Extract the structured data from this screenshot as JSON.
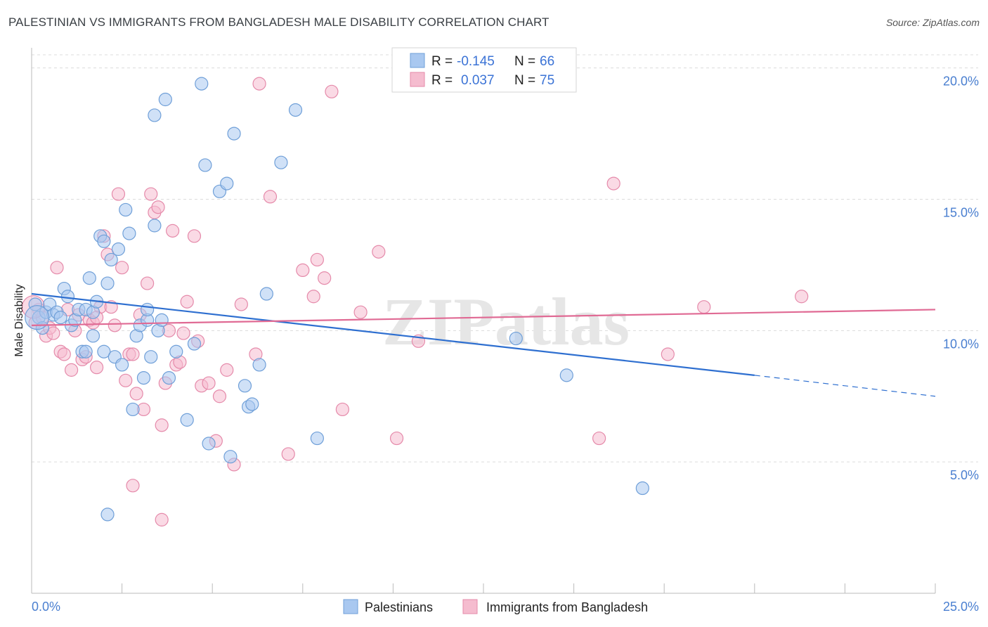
{
  "title": "PALESTINIAN VS IMMIGRANTS FROM BANGLADESH MALE DISABILITY CORRELATION CHART",
  "source": "Source: ZipAtlas.com",
  "watermark": "ZIPatlas",
  "legend": {
    "rows": [
      {
        "r_label": "R =",
        "r_value": "-0.145",
        "n_label": "N =",
        "n_value": "66"
      },
      {
        "r_label": "R =",
        "r_value": "0.037",
        "n_label": "N =",
        "n_value": "75"
      }
    ]
  },
  "bottom_legend": [
    "Palestinians",
    "Immigrants from Bangladesh"
  ],
  "colors": {
    "blue_fill": "#a9c8f0",
    "blue_stroke": "#6f9fd8",
    "blue_line": "#2e6fd0",
    "pink_fill": "#f5bccf",
    "pink_stroke": "#e58aaa",
    "pink_line": "#e06a94",
    "tick_label": "#4a7fd0",
    "grid": "#dcdcdc"
  },
  "chart_data": {
    "type": "scatter",
    "xlabel": "",
    "ylabel": "Male Disability",
    "xlim": [
      0,
      25
    ],
    "ylim": [
      0,
      20.5
    ],
    "x_tick_labels": [
      "0.0%",
      "25.0%"
    ],
    "y_ticks": [
      5,
      10,
      15,
      20
    ],
    "y_tick_labels": [
      "5.0%",
      "10.0%",
      "15.0%",
      "20.0%"
    ],
    "grid": true,
    "series": [
      {
        "name": "Palestinians",
        "color": "#a9c8f0",
        "trend": {
          "x": [
            0,
            20
          ],
          "y": [
            11.4,
            8.3
          ],
          "dashed_to": [
            25,
            7.5
          ]
        },
        "points": [
          [
            0.1,
            11.0
          ],
          [
            0.2,
            10.5
          ],
          [
            0.3,
            10.1
          ],
          [
            0.4,
            10.7
          ],
          [
            0.5,
            11.0
          ],
          [
            0.6,
            10.6
          ],
          [
            0.7,
            10.7
          ],
          [
            0.8,
            10.5
          ],
          [
            0.9,
            11.6
          ],
          [
            1.0,
            11.3
          ],
          [
            1.1,
            10.2
          ],
          [
            1.2,
            10.4
          ],
          [
            1.3,
            10.8
          ],
          [
            1.4,
            9.2
          ],
          [
            1.5,
            9.2
          ],
          [
            1.5,
            10.8
          ],
          [
            1.6,
            12.0
          ],
          [
            1.7,
            9.8
          ],
          [
            1.7,
            10.7
          ],
          [
            1.8,
            11.1
          ],
          [
            1.9,
            13.6
          ],
          [
            2.0,
            9.2
          ],
          [
            2.0,
            13.4
          ],
          [
            2.1,
            11.8
          ],
          [
            2.2,
            12.7
          ],
          [
            2.3,
            9.0
          ],
          [
            2.4,
            13.1
          ],
          [
            2.5,
            8.7
          ],
          [
            2.6,
            14.6
          ],
          [
            2.7,
            13.7
          ],
          [
            2.8,
            7.0
          ],
          [
            2.9,
            9.8
          ],
          [
            3.0,
            10.2
          ],
          [
            3.1,
            8.2
          ],
          [
            3.2,
            10.4
          ],
          [
            3.2,
            10.8
          ],
          [
            3.3,
            9.0
          ],
          [
            3.4,
            18.2
          ],
          [
            3.4,
            14.0
          ],
          [
            3.5,
            10.0
          ],
          [
            3.6,
            10.4
          ],
          [
            3.7,
            18.8
          ],
          [
            3.8,
            8.2
          ],
          [
            4.0,
            9.2
          ],
          [
            4.3,
            6.6
          ],
          [
            4.5,
            9.5
          ],
          [
            4.7,
            19.4
          ],
          [
            4.8,
            16.3
          ],
          [
            4.9,
            5.7
          ],
          [
            5.2,
            15.3
          ],
          [
            5.4,
            15.6
          ],
          [
            5.5,
            5.2
          ],
          [
            5.6,
            17.5
          ],
          [
            5.9,
            7.9
          ],
          [
            6.0,
            7.1
          ],
          [
            6.1,
            7.2
          ],
          [
            6.3,
            8.7
          ],
          [
            6.5,
            11.4
          ],
          [
            6.9,
            16.4
          ],
          [
            7.3,
            18.4
          ],
          [
            7.9,
            5.9
          ],
          [
            13.4,
            9.7
          ],
          [
            14.8,
            8.3
          ],
          [
            16.9,
            4.0
          ],
          [
            2.1,
            3.0
          ],
          [
            0.15,
            10.5
          ]
        ]
      },
      {
        "name": "Immigrants from Bangladesh",
        "color": "#f5bccf",
        "trend": {
          "x": [
            0,
            25
          ],
          "y": [
            10.2,
            10.8
          ]
        },
        "points": [
          [
            0.1,
            10.3
          ],
          [
            0.2,
            10.8
          ],
          [
            0.3,
            10.5
          ],
          [
            0.4,
            9.8
          ],
          [
            0.5,
            10.1
          ],
          [
            0.6,
            9.9
          ],
          [
            0.7,
            12.4
          ],
          [
            0.8,
            9.2
          ],
          [
            0.9,
            9.1
          ],
          [
            1.0,
            10.8
          ],
          [
            1.1,
            8.5
          ],
          [
            1.2,
            10.0
          ],
          [
            1.3,
            10.6
          ],
          [
            1.4,
            8.9
          ],
          [
            1.5,
            9.0
          ],
          [
            1.6,
            10.4
          ],
          [
            1.7,
            10.3
          ],
          [
            1.8,
            8.6
          ],
          [
            1.9,
            10.9
          ],
          [
            2.0,
            13.6
          ],
          [
            2.1,
            12.9
          ],
          [
            2.2,
            10.9
          ],
          [
            2.3,
            10.2
          ],
          [
            2.4,
            15.2
          ],
          [
            2.5,
            12.4
          ],
          [
            2.6,
            8.1
          ],
          [
            2.7,
            9.1
          ],
          [
            2.8,
            9.1
          ],
          [
            2.9,
            7.6
          ],
          [
            3.0,
            10.6
          ],
          [
            3.1,
            7.0
          ],
          [
            3.2,
            11.8
          ],
          [
            3.3,
            15.2
          ],
          [
            3.4,
            14.5
          ],
          [
            3.5,
            14.7
          ],
          [
            3.6,
            6.4
          ],
          [
            3.7,
            8.0
          ],
          [
            3.8,
            10.0
          ],
          [
            3.9,
            13.8
          ],
          [
            4.0,
            8.7
          ],
          [
            4.1,
            8.8
          ],
          [
            4.2,
            9.9
          ],
          [
            4.3,
            11.1
          ],
          [
            4.5,
            13.6
          ],
          [
            4.6,
            9.6
          ],
          [
            4.7,
            7.9
          ],
          [
            4.9,
            8.0
          ],
          [
            5.1,
            5.8
          ],
          [
            5.2,
            7.5
          ],
          [
            5.4,
            8.5
          ],
          [
            5.6,
            4.9
          ],
          [
            5.8,
            11.0
          ],
          [
            6.2,
            9.1
          ],
          [
            6.6,
            15.1
          ],
          [
            7.1,
            5.3
          ],
          [
            7.5,
            12.3
          ],
          [
            7.8,
            11.3
          ],
          [
            7.9,
            12.7
          ],
          [
            8.1,
            12.0
          ],
          [
            8.3,
            19.1
          ],
          [
            8.6,
            7.0
          ],
          [
            9.1,
            10.7
          ],
          [
            9.6,
            13.0
          ],
          [
            10.1,
            5.9
          ],
          [
            10.7,
            9.6
          ],
          [
            15.7,
            5.9
          ],
          [
            16.1,
            15.6
          ],
          [
            17.6,
            9.1
          ],
          [
            18.6,
            10.9
          ],
          [
            21.3,
            11.3
          ],
          [
            2.8,
            4.1
          ],
          [
            3.6,
            2.8
          ],
          [
            6.3,
            19.4
          ],
          [
            1.8,
            10.5
          ],
          [
            0.05,
            10.9
          ]
        ]
      }
    ]
  }
}
